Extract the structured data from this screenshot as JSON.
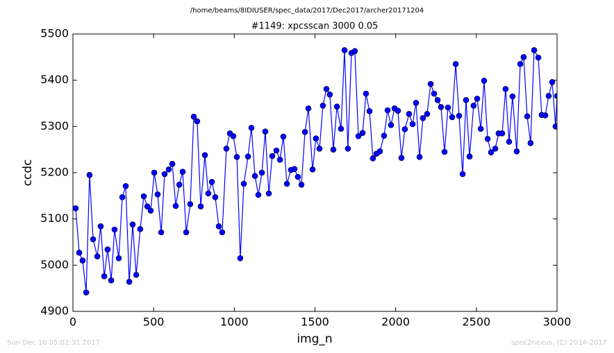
{
  "path_title": "/home/beams/8IDIUSER/spec_data/2017/Dec2017/archer20171204",
  "footer_left": "Sun Dec 10 05:02:31 2017",
  "footer_right": "spec2nexus, (C) 2014-2017",
  "chart_data": {
    "type": "line",
    "title": "#1149: xpcsscan 3000 0.05",
    "x_label": "img_n",
    "y_label": "ccdc",
    "xlim": [
      0,
      3000
    ],
    "xticks": [
      0,
      500,
      1000,
      1500,
      2000,
      2500,
      3000
    ],
    "ylim": [
      4900,
      5500
    ],
    "yticks": [
      4900,
      5000,
      5100,
      5200,
      5300,
      5400,
      5500
    ],
    "color": "#0000ff",
    "marker_edge": "#000000",
    "x": [
      17,
      39,
      60,
      82,
      103,
      125,
      151,
      172,
      194,
      215,
      237,
      258,
      284,
      306,
      327,
      349,
      370,
      392,
      417,
      439,
      461,
      482,
      504,
      525,
      547,
      568,
      594,
      616,
      637,
      659,
      680,
      702,
      727,
      749,
      770,
      792,
      818,
      839,
      861,
      882,
      904,
      925,
      951,
      973,
      994,
      1016,
      1037,
      1059,
      1085,
      1106,
      1128,
      1149,
      1171,
      1192,
      1214,
      1235,
      1261,
      1283,
      1304,
      1326,
      1351,
      1373,
      1394,
      1416,
      1438,
      1459,
      1485,
      1506,
      1528,
      1549,
      1571,
      1592,
      1614,
      1636,
      1661,
      1683,
      1704,
      1726,
      1747,
      1769,
      1795,
      1816,
      1838,
      1859,
      1881,
      1902,
      1928,
      1950,
      1971,
      1993,
      2014,
      2036,
      2057,
      2083,
      2105,
      2126,
      2148,
      2169,
      2195,
      2217,
      2238,
      2260,
      2281,
      2303,
      2324,
      2350,
      2372,
      2393,
      2415,
      2436,
      2458,
      2483,
      2505,
      2527,
      2548,
      2570,
      2591,
      2617,
      2638,
      2660,
      2681,
      2703,
      2724,
      2750,
      2772,
      2793,
      2815,
      2836,
      2858,
      2884,
      2905,
      2927,
      2948,
      2970,
      2991,
      3000
    ],
    "values": [
      5123,
      5027,
      5010,
      4941,
      5195,
      5056,
      5019,
      5084,
      4976,
      5034,
      4967,
      5077,
      5015,
      5147,
      5171,
      4964,
      5088,
      4979,
      5078,
      5149,
      5127,
      5118,
      5200,
      5153,
      5071,
      5197,
      5207,
      5219,
      5128,
      5174,
      5202,
      5071,
      5132,
      5321,
      5311,
      5127,
      5238,
      5155,
      5180,
      5147,
      5084,
      5071,
      5252,
      5285,
      5279,
      5234,
      5015,
      5176,
      5235,
      5297,
      5193,
      5152,
      5200,
      5289,
      5155,
      5236,
      5248,
      5228,
      5278,
      5176,
      5206,
      5208,
      5191,
      5174,
      5288,
      5339,
      5207,
      5274,
      5252,
      5345,
      5381,
      5369,
      5250,
      5343,
      5295,
      5465,
      5252,
      5459,
      5463,
      5279,
      5286,
      5371,
      5333,
      5231,
      5241,
      5246,
      5280,
      5335,
      5303,
      5339,
      5334,
      5232,
      5294,
      5327,
      5305,
      5351,
      5234,
      5318,
      5327,
      5392,
      5371,
      5357,
      5342,
      5245,
      5341,
      5320,
      5435,
      5323,
      5197,
      5357,
      5235,
      5345,
      5360,
      5295,
      5399,
      5273,
      5244,
      5252,
      5285,
      5285,
      5381,
      5267,
      5365,
      5246,
      5435,
      5450,
      5322,
      5264,
      5465,
      5449,
      5325,
      5324,
      5366,
      5396,
      5300,
      5366
    ]
  }
}
